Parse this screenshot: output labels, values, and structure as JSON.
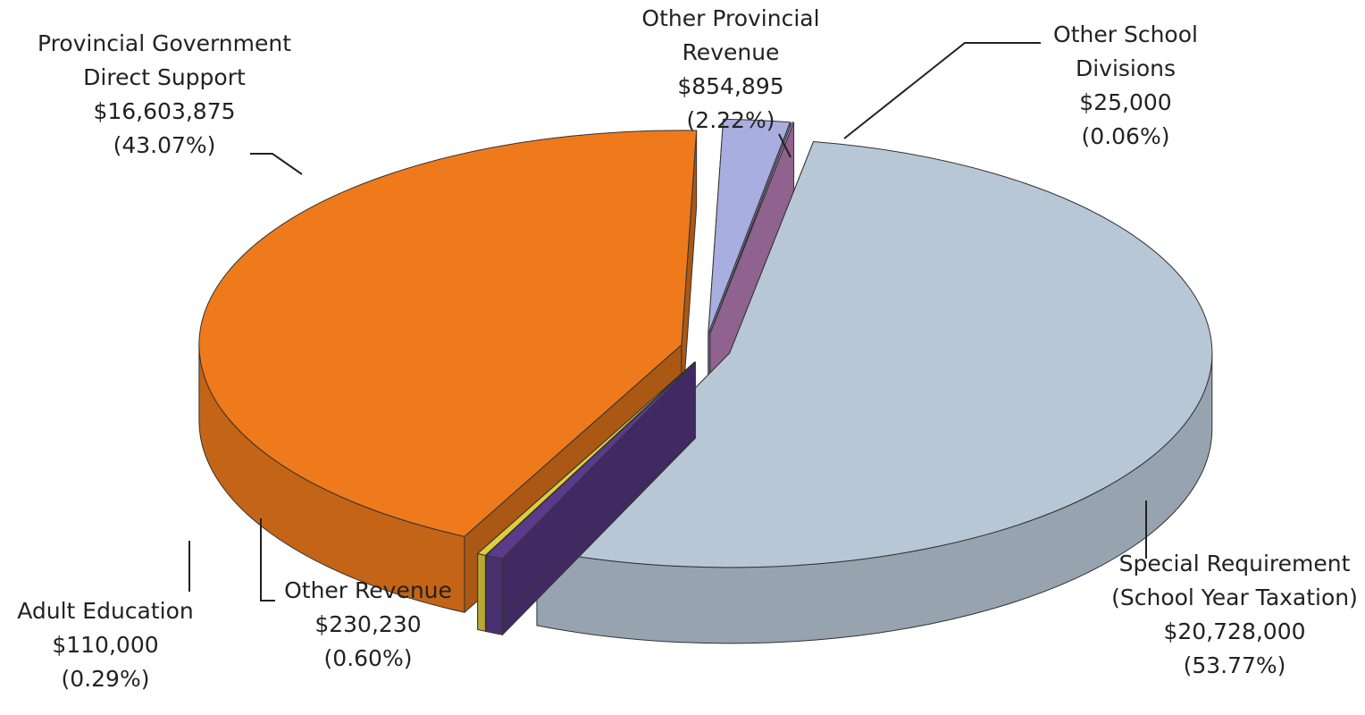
{
  "chart_data": {
    "type": "pie",
    "categories": [
      "Special Requirement (School Year Taxation)",
      "Other Revenue",
      "Adult Education",
      "Provincial Government Direct Support",
      "Other Provincial Revenue",
      "Other School Divisions"
    ],
    "values": [
      20728000,
      230230,
      110000,
      16603875,
      854895,
      25000
    ],
    "value_labels": [
      "$20,728,000",
      "$230,230",
      "$110,000",
      "$16,603,875",
      "$854,895",
      "$25,000"
    ],
    "percents": [
      53.77,
      0.6,
      0.29,
      43.07,
      2.22,
      0.06
    ],
    "percent_labels": [
      "(53.77%)",
      "(0.60%)",
      "(0.29%)",
      "(43.07%)",
      "(2.22%)",
      "(0.06%)"
    ],
    "colors": [
      "#b8c7d5",
      "#5a3a8a",
      "#e2cc3c",
      "#ee7a1c",
      "#a9aee0",
      "#c688c6"
    ]
  }
}
